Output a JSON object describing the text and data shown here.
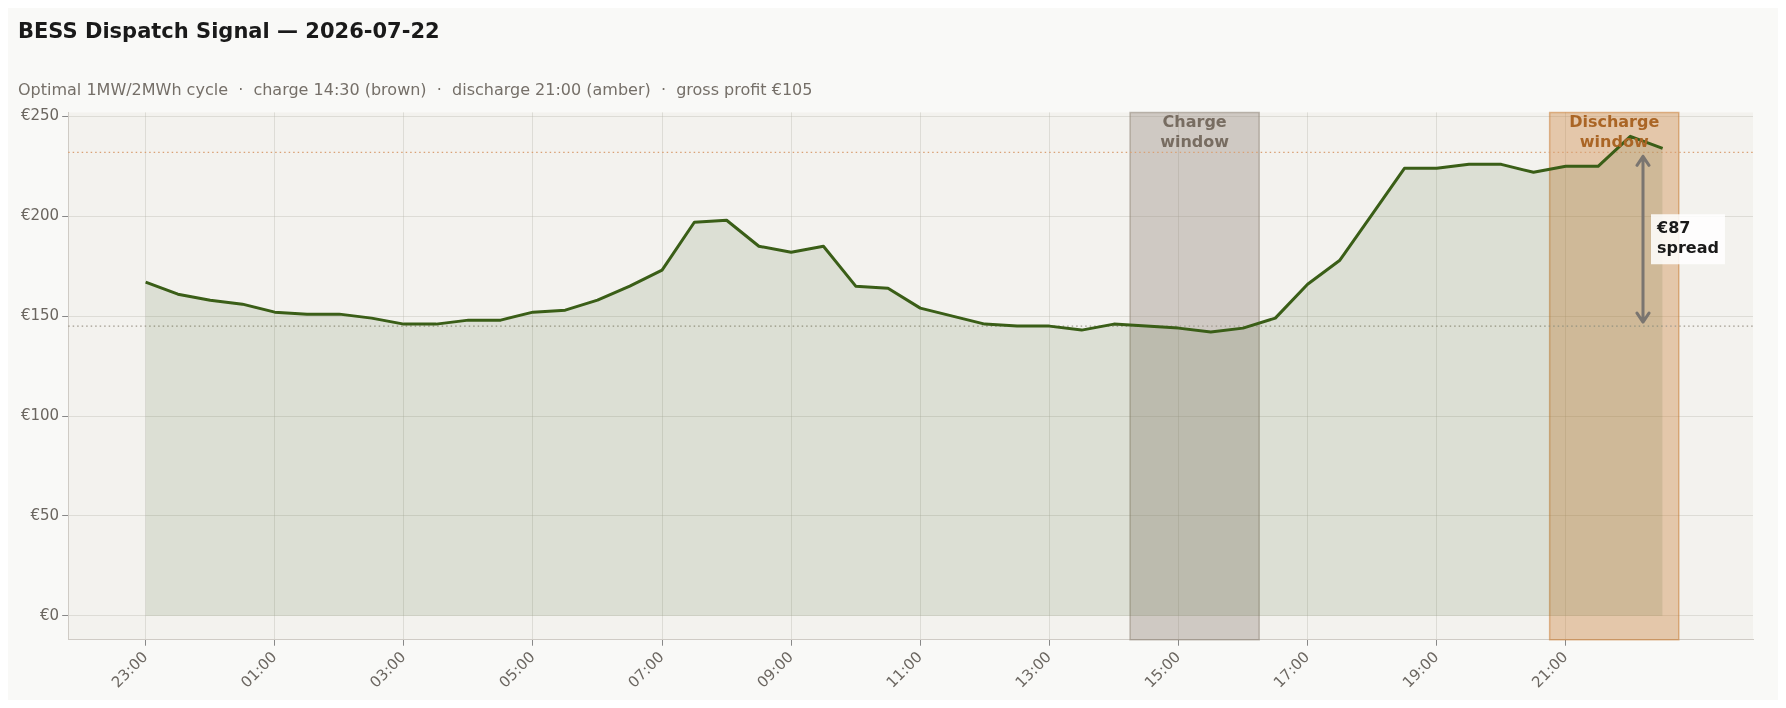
{
  "chart_data": {
    "type": "area",
    "title": "BESS Dispatch Signal — 2026-07-22",
    "subtitle": "Optimal 1MW/2MWh cycle  ·  charge 14:30 (brown)  ·  discharge 21:00 (amber)  ·  gross profit €105",
    "x": [
      "2026-07-21T23:00",
      "2026-07-21T23:30",
      "2026-07-22T00:00",
      "2026-07-22T00:30",
      "2026-07-22T01:00",
      "2026-07-22T01:30",
      "2026-07-22T02:00",
      "2026-07-22T02:30",
      "2026-07-22T03:00",
      "2026-07-22T03:30",
      "2026-07-22T04:00",
      "2026-07-22T04:30",
      "2026-07-22T05:00",
      "2026-07-22T05:30",
      "2026-07-22T06:00",
      "2026-07-22T06:30",
      "2026-07-22T07:00",
      "2026-07-22T07:30",
      "2026-07-22T08:00",
      "2026-07-22T08:30",
      "2026-07-22T09:00",
      "2026-07-22T09:30",
      "2026-07-22T10:00",
      "2026-07-22T10:30",
      "2026-07-22T11:00",
      "2026-07-22T11:30",
      "2026-07-22T12:00",
      "2026-07-22T12:30",
      "2026-07-22T13:00",
      "2026-07-22T13:30",
      "2026-07-22T14:00",
      "2026-07-22T14:30",
      "2026-07-22T15:00",
      "2026-07-22T15:30",
      "2026-07-22T16:00",
      "2026-07-22T16:30",
      "2026-07-22T17:00",
      "2026-07-22T17:30",
      "2026-07-22T18:00",
      "2026-07-22T18:30",
      "2026-07-22T19:00",
      "2026-07-22T19:30",
      "2026-07-22T20:00",
      "2026-07-22T20:30",
      "2026-07-22T21:00",
      "2026-07-22T21:30",
      "2026-07-22T22:00",
      "2026-07-22T22:30"
    ],
    "series": [
      {
        "color": "#3a5e17",
        "values": [
          167,
          161,
          158,
          156,
          152,
          151,
          151,
          149,
          146,
          146,
          148,
          148,
          152,
          153,
          158,
          165,
          173,
          197,
          198,
          185,
          182,
          185,
          165,
          164,
          154,
          150,
          146,
          145,
          145,
          143,
          146,
          145,
          144,
          142,
          144,
          149,
          166,
          178,
          201,
          224,
          224,
          226,
          226,
          222,
          225,
          225,
          240,
          234
        ]
      }
    ],
    "xlim": [
      "2026-07-21T21:48",
      "2026-07-22T23:54"
    ],
    "xticks": [
      {
        "value": "2026-07-21T23:00",
        "label": "23:00"
      },
      {
        "value": "2026-07-22T01:00",
        "label": "01:00"
      },
      {
        "value": "2026-07-22T03:00",
        "label": "03:00"
      },
      {
        "value": "2026-07-22T05:00",
        "label": "05:00"
      },
      {
        "value": "2026-07-22T07:00",
        "label": "07:00"
      },
      {
        "value": "2026-07-22T09:00",
        "label": "09:00"
      },
      {
        "value": "2026-07-22T11:00",
        "label": "11:00"
      },
      {
        "value": "2026-07-22T13:00",
        "label": "13:00"
      },
      {
        "value": "2026-07-22T15:00",
        "label": "15:00"
      },
      {
        "value": "2026-07-22T17:00",
        "label": "17:00"
      },
      {
        "value": "2026-07-22T19:00",
        "label": "19:00"
      },
      {
        "value": "2026-07-22T21:00",
        "label": "21:00"
      }
    ],
    "ylim": [
      -12,
      252
    ],
    "yticks": [
      {
        "value": 0,
        "label": "€0"
      },
      {
        "value": 50,
        "label": "€50"
      },
      {
        "value": 100,
        "label": "€100"
      },
      {
        "value": 150,
        "label": "€150"
      },
      {
        "value": 200,
        "label": "€200"
      },
      {
        "value": 250,
        "label": "€250"
      }
    ],
    "grid": true,
    "bands": [
      {
        "axis": "x",
        "from": "2026-07-22T14:15",
        "to": "2026-07-22T16:15",
        "label": "Charge\nwindow",
        "color": "#8c7f72"
      },
      {
        "axis": "x",
        "from": "2026-07-22T20:45",
        "to": "2026-07-22T22:45",
        "label": "Discharge\nwindow",
        "color": "#c8772c"
      }
    ],
    "ref_lines": [
      {
        "axis": "y",
        "value": 232,
        "color": "#d9a074",
        "line_style": "dotted"
      },
      {
        "axis": "y",
        "value": 145,
        "color": "#a09a8e",
        "line_style": "dotted"
      }
    ],
    "annotations": [
      "€87\nspread"
    ]
  }
}
